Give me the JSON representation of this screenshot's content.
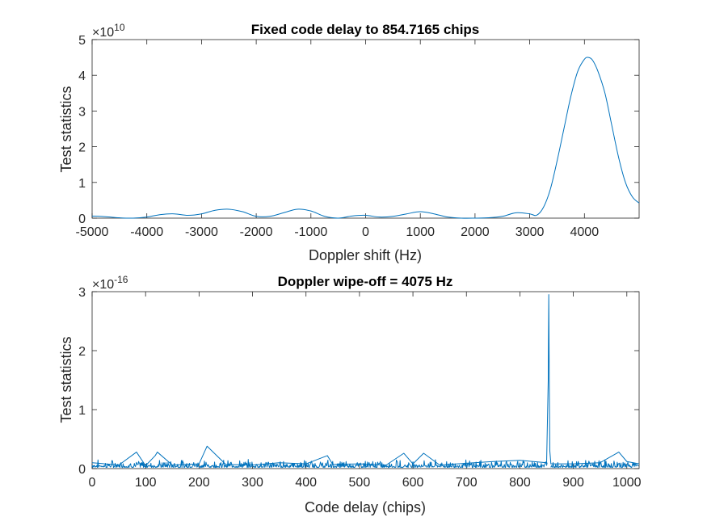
{
  "chart_data": [
    {
      "type": "line",
      "title": "Fixed code delay to 854.7165 chips",
      "xlabel": "Doppler shift (Hz)",
      "ylabel": "Test statistics",
      "y_exponent_base": "×10",
      "y_exponent": "10",
      "xlim": [
        -5000,
        5000
      ],
      "ylim": [
        0,
        5
      ],
      "x_ticks": [
        -5000,
        -4000,
        -3000,
        -2000,
        -1000,
        0,
        1000,
        2000,
        3000,
        4000
      ],
      "x_tick_labels": [
        "-5000",
        "-4000",
        "-3000",
        "-2000",
        "-1000",
        "0",
        "1000",
        "2000",
        "3000",
        "4000"
      ],
      "y_ticks": [
        0,
        1,
        2,
        3,
        4,
        5
      ],
      "y_tick_labels": [
        "0",
        "1",
        "2",
        "3",
        "4",
        "5"
      ],
      "grid": false,
      "color": "#0072BD",
      "series": [
        {
          "x": [
            -5000,
            -4750,
            -4500,
            -4250,
            -4000,
            -3750,
            -3500,
            -3250,
            -3000,
            -2750,
            -2500,
            -2250,
            -2000,
            -1750,
            -1500,
            -1250,
            -1000,
            -750,
            -500,
            -250,
            0,
            250,
            500,
            750,
            1000,
            1250,
            1500,
            1750,
            2000,
            2250,
            2500,
            2750,
            3000,
            3125,
            3250,
            3375,
            3500,
            3625,
            3750,
            3875,
            4000,
            4075,
            4150,
            4250,
            4375,
            4500,
            4625,
            4750,
            4875,
            5000
          ],
          "values": [
            0.06,
            0.04,
            0.01,
            0.0,
            0.03,
            0.1,
            0.12,
            0.08,
            0.12,
            0.22,
            0.25,
            0.18,
            0.05,
            0.05,
            0.15,
            0.25,
            0.2,
            0.05,
            0.0,
            0.06,
            0.08,
            0.03,
            0.05,
            0.12,
            0.18,
            0.12,
            0.03,
            0.0,
            0.0,
            0.01,
            0.05,
            0.15,
            0.12,
            0.08,
            0.3,
            0.8,
            1.6,
            2.5,
            3.4,
            4.1,
            4.45,
            4.5,
            4.42,
            4.1,
            3.5,
            2.6,
            1.7,
            1.0,
            0.6,
            0.42
          ]
        }
      ]
    },
    {
      "type": "line",
      "title": "Doppler wipe-off = 4075 Hz",
      "xlabel": "Code delay (chips)",
      "ylabel": "Test statistics",
      "y_exponent_base": "×10",
      "y_exponent": "-16",
      "xlim": [
        0,
        1023
      ],
      "ylim": [
        0,
        3
      ],
      "x_ticks": [
        0,
        100,
        200,
        300,
        400,
        500,
        600,
        700,
        800,
        900,
        1000
      ],
      "x_tick_labels": [
        "0",
        "100",
        "200",
        "300",
        "400",
        "500",
        "600",
        "700",
        "800",
        "900",
        "1000"
      ],
      "y_ticks": [
        0,
        1,
        2,
        3
      ],
      "y_tick_labels": [
        "0",
        "1",
        "2",
        "3"
      ],
      "grid": false,
      "color": "#0072BD",
      "series": [
        {
          "x": [
            0,
            50,
            83,
            100,
            118,
            122,
            150,
            200,
            215,
            250,
            300,
            350,
            400,
            440,
            450,
            500,
            550,
            583,
            600,
            620,
            650,
            700,
            750,
            800,
            850,
            853,
            854,
            855,
            856,
            858,
            900,
            950,
            985,
            1000,
            1023
          ],
          "values": [
            0.1,
            0.06,
            0.28,
            0.05,
            0.22,
            0.28,
            0.06,
            0.08,
            0.38,
            0.07,
            0.06,
            0.1,
            0.08,
            0.22,
            0.07,
            0.08,
            0.06,
            0.26,
            0.08,
            0.26,
            0.06,
            0.09,
            0.12,
            0.14,
            0.1,
            1.5,
            2.95,
            1.4,
            0.3,
            0.08,
            0.08,
            0.1,
            0.28,
            0.12,
            0.08
          ]
        }
      ],
      "noise_band": 0.12
    }
  ]
}
